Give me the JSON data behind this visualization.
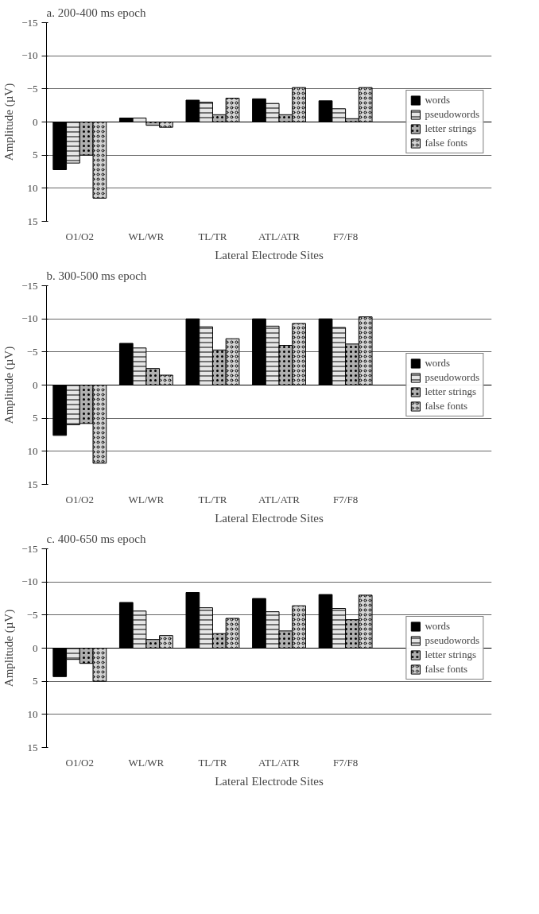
{
  "chart_data": [
    {
      "type": "bar",
      "title": "a. 200-400 ms epoch",
      "xlabel": "Lateral Electrode Sites",
      "ylabel": "Amplitude (µV)",
      "categories": [
        "O1/O2",
        "WL/WR",
        "TL/TR",
        "ATL/ATR",
        "F7/F8"
      ],
      "ylim": [
        15,
        -15
      ],
      "yticks": [
        -15,
        -10,
        -5,
        0,
        5,
        10,
        15
      ],
      "grid": "y",
      "legend": "right",
      "series": [
        {
          "name": "words",
          "color": "#000000",
          "values": [
            7.2,
            -0.6,
            -3.3,
            -3.5,
            -3.2
          ]
        },
        {
          "name": "pseudowords",
          "color": "#e6e6e6",
          "values": [
            6.2,
            -0.6,
            -3.0,
            -2.8,
            -2.0
          ]
        },
        {
          "name": "letter strings",
          "color": "#b0b0b0",
          "values": [
            5.0,
            0.5,
            -1.1,
            -1.1,
            -0.5
          ]
        },
        {
          "name": "false fonts",
          "color": "#d4d4d4",
          "values": [
            11.5,
            0.8,
            -3.6,
            -5.2,
            -5.2
          ]
        }
      ]
    },
    {
      "type": "bar",
      "title": "b. 300-500 ms epoch",
      "xlabel": "Lateral Electrode Sites",
      "ylabel": "Amplitude (µV)",
      "categories": [
        "O1/O2",
        "WL/WR",
        "TL/TR",
        "ATL/ATR",
        "F7/F8"
      ],
      "ylim": [
        15,
        -15
      ],
      "yticks": [
        -15,
        -10,
        -5,
        0,
        5,
        10,
        15
      ],
      "grid": "y",
      "legend": "right",
      "series": [
        {
          "name": "words",
          "color": "#000000",
          "values": [
            7.6,
            -6.3,
            -10,
            -10,
            -10
          ]
        },
        {
          "name": "pseudowords",
          "color": "#e6e6e6",
          "values": [
            6.0,
            -5.6,
            -8.8,
            -8.9,
            -8.7
          ]
        },
        {
          "name": "letter strings",
          "color": "#b0b0b0",
          "values": [
            5.8,
            -2.5,
            -5.3,
            -6.0,
            -6.2
          ]
        },
        {
          "name": "false fonts",
          "color": "#d4d4d4",
          "values": [
            11.8,
            -1.5,
            -7.0,
            -9.3,
            -10.3
          ]
        }
      ]
    },
    {
      "type": "bar",
      "title": "c. 400-650 ms epoch",
      "xlabel": "Lateral Electrode Sites",
      "ylabel": "Amplitude (µV)",
      "categories": [
        "O1/O2",
        "WL/WR",
        "TL/TR",
        "ATL/ATR",
        "F7/F8"
      ],
      "ylim": [
        15,
        -15
      ],
      "yticks": [
        -15,
        -10,
        -5,
        0,
        5,
        10,
        15
      ],
      "grid": "y",
      "legend": "right",
      "series": [
        {
          "name": "words",
          "color": "#000000",
          "values": [
            4.3,
            -6.9,
            -8.4,
            -7.5,
            -8.1
          ]
        },
        {
          "name": "pseudowords",
          "color": "#e6e6e6",
          "values": [
            1.7,
            -5.6,
            -6.1,
            -5.5,
            -6.0
          ]
        },
        {
          "name": "letter strings",
          "color": "#b0b0b0",
          "values": [
            2.3,
            -1.3,
            -2.2,
            -2.6,
            -4.3
          ]
        },
        {
          "name": "false fonts",
          "color": "#d4d4d4",
          "values": [
            5.0,
            -1.9,
            -4.5,
            -6.4,
            -8.0
          ]
        }
      ]
    }
  ]
}
